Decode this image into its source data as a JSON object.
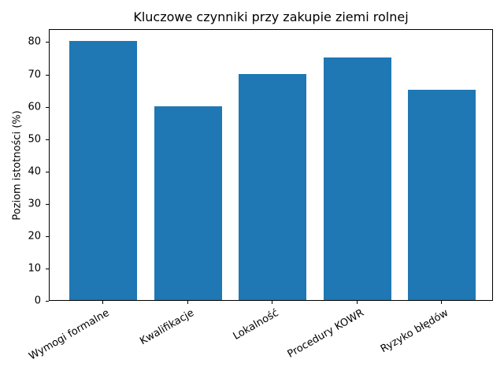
{
  "chart_data": {
    "type": "bar",
    "title": "Kluczowe czynniki przy zakupie ziemi rolnej",
    "xlabel": "",
    "ylabel": "Poziom istotności (%)",
    "categories": [
      "Wymogi formalne",
      "Kwalifikacje",
      "Lokalność",
      "Procedury KOWR",
      "Ryzyko błędów"
    ],
    "values": [
      80,
      60,
      70,
      75,
      65
    ],
    "ylim": [
      0,
      84
    ],
    "yticks": [
      0,
      10,
      20,
      30,
      40,
      50,
      60,
      70,
      80
    ],
    "color": "#1f77b4",
    "grid": false
  }
}
